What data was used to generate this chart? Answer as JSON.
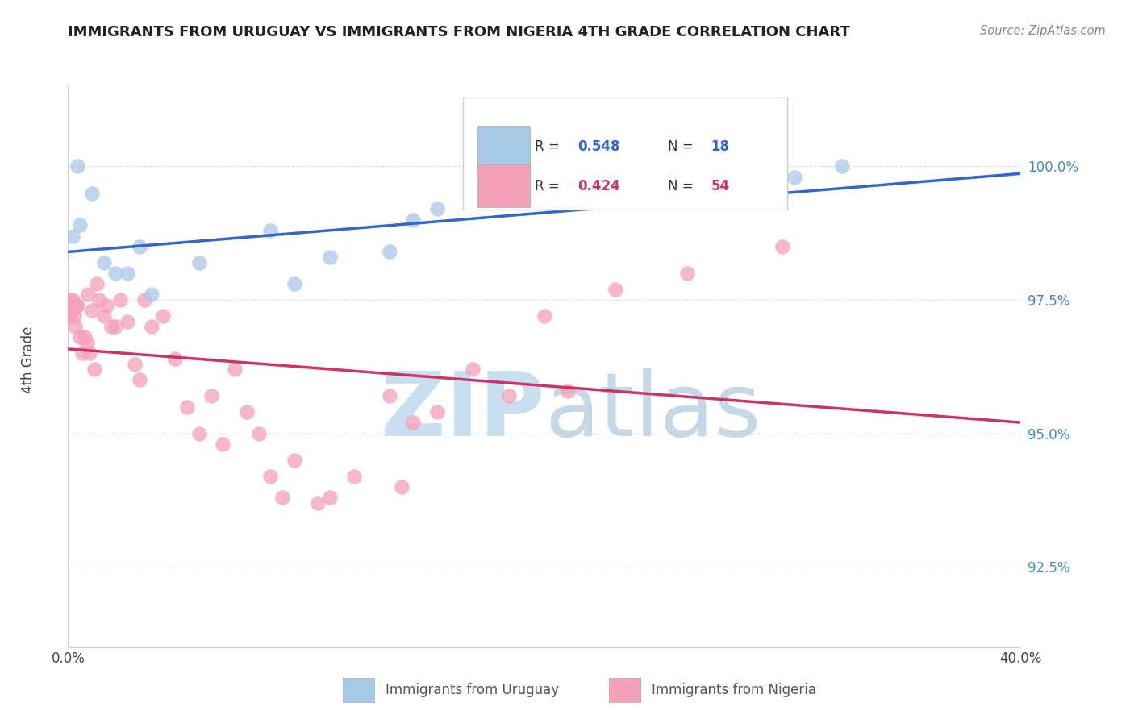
{
  "title": "IMMIGRANTS FROM URUGUAY VS IMMIGRANTS FROM NIGERIA 4TH GRADE CORRELATION CHART",
  "source": "Source: ZipAtlas.com",
  "ylabel": "4th Grade",
  "y_tick_labels": [
    "92.5%",
    "95.0%",
    "97.5%",
    "100.0%"
  ],
  "y_tick_values": [
    92.5,
    95.0,
    97.5,
    100.0
  ],
  "xlim": [
    0.0,
    40.0
  ],
  "ylim": [
    91.0,
    101.5
  ],
  "legend_r_uruguay": "R = 0.548",
  "legend_n_uruguay": "N = 18",
  "legend_r_nigeria": "R = 0.424",
  "legend_n_nigeria": "N = 54",
  "legend_label_uruguay": "Immigrants from Uruguay",
  "legend_label_nigeria": "Immigrants from Nigeria",
  "uruguay_color": "#a8c8e8",
  "nigeria_color": "#f4a0b8",
  "uruguay_line_color": "#3366cc",
  "nigeria_line_color": "#cc3366",
  "watermark_zip_color": "#c8dff0",
  "watermark_atlas_color": "#b0cce0",
  "uruguay_x": [
    0.2,
    0.4,
    0.5,
    1.0,
    1.5,
    2.0,
    2.5,
    3.0,
    3.5,
    5.5,
    8.5,
    9.5,
    11.0,
    13.5,
    14.5,
    15.5,
    30.5,
    32.5
  ],
  "uruguay_y": [
    98.7,
    100.0,
    98.9,
    99.5,
    98.2,
    98.0,
    98.0,
    98.5,
    97.6,
    98.2,
    98.8,
    97.8,
    98.3,
    98.4,
    99.0,
    99.2,
    99.8,
    100.0
  ],
  "nigeria_x": [
    0.05,
    0.1,
    0.15,
    0.2,
    0.25,
    0.3,
    0.35,
    0.4,
    0.5,
    0.6,
    0.7,
    0.8,
    0.85,
    0.9,
    1.0,
    1.1,
    1.2,
    1.3,
    1.5,
    1.6,
    1.8,
    2.0,
    2.2,
    2.5,
    2.8,
    3.0,
    3.2,
    3.5,
    4.0,
    4.5,
    5.0,
    5.5,
    6.0,
    6.5,
    7.0,
    7.5,
    8.0,
    8.5,
    9.0,
    9.5,
    10.5,
    11.0,
    12.0,
    13.5,
    14.0,
    14.5,
    15.5,
    17.0,
    18.5,
    20.0,
    21.0,
    23.0,
    26.0,
    30.0
  ],
  "nigeria_y": [
    97.2,
    97.5,
    97.3,
    97.5,
    97.2,
    97.0,
    97.4,
    97.4,
    96.8,
    96.5,
    96.8,
    96.7,
    97.6,
    96.5,
    97.3,
    96.2,
    97.8,
    97.5,
    97.2,
    97.4,
    97.0,
    97.0,
    97.5,
    97.1,
    96.3,
    96.0,
    97.5,
    97.0,
    97.2,
    96.4,
    95.5,
    95.0,
    95.7,
    94.8,
    96.2,
    95.4,
    95.0,
    94.2,
    93.8,
    94.5,
    93.7,
    93.8,
    94.2,
    95.7,
    94.0,
    95.2,
    95.4,
    96.2,
    95.7,
    97.2,
    95.8,
    97.7,
    98.0,
    98.5
  ]
}
